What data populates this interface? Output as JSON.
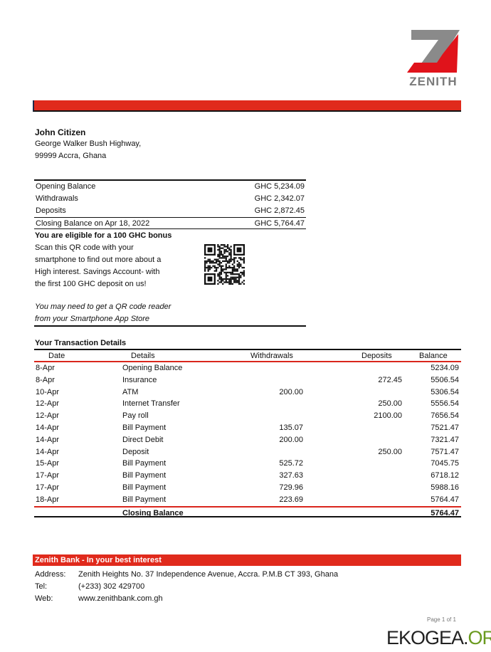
{
  "brand": {
    "name": "ZENITH",
    "red": "#e02a1c",
    "gray": "#8a8a8a"
  },
  "customer": {
    "name": "John Citizen",
    "address1": "George Walker Bush Highway,",
    "address2": "99999 Accra, Ghana"
  },
  "summary": [
    {
      "label": "Opening Balance",
      "value": "GHC 5,234.09"
    },
    {
      "label": "Withdrawals",
      "value": "GHC 2,342.07"
    },
    {
      "label": "Deposits",
      "value": "GHC 2,872.45"
    },
    {
      "label": "Closing  Balance on Apr 18, 2022",
      "value": "GHC 5,764.47"
    }
  ],
  "promo": {
    "title": "You are eligible for a 100 GHC bonus",
    "lines": [
      "Scan this QR code with your",
      "smartphone to find out more about a",
      "High interest. Savings Account- with",
      "the first 100 GHC deposit on us!"
    ],
    "note": [
      "You may need to get a QR code reader",
      "from your Smartphone App Store"
    ]
  },
  "transactions": {
    "title": "Your Transaction Details",
    "headers": [
      "Date",
      "Details",
      "Withdrawals",
      "Deposits",
      "Balance"
    ],
    "rows": [
      [
        "8-Apr",
        "Opening Balance",
        "",
        "",
        "5234.09"
      ],
      [
        "8-Apr",
        "Insurance",
        "",
        "272.45",
        "5506.54"
      ],
      [
        "10-Apr",
        "ATM",
        "200.00",
        "",
        "5306.54"
      ],
      [
        "12-Apr",
        "Internet Transfer",
        "",
        "250.00",
        "5556.54"
      ],
      [
        "12-Apr",
        "Pay roll",
        "",
        "2100.00",
        "7656.54"
      ],
      [
        "14-Apr",
        "Bill Payment",
        "135.07",
        "",
        "7521.47"
      ],
      [
        "14-Apr",
        "Direct Debit",
        "200.00",
        "",
        "7321.47"
      ],
      [
        "14-Apr",
        "Deposit",
        "",
        "250.00",
        "7571.47"
      ],
      [
        "15-Apr",
        "Bill Payment",
        "525.72",
        "",
        "7045.75"
      ],
      [
        "17-Apr",
        "Bill Payment",
        "327.63",
        "",
        "6718.12"
      ],
      [
        "17-Apr",
        "Bill Payment",
        "729.96",
        "",
        "5988.16"
      ],
      [
        "18-Apr",
        "Bill Payment",
        "223.69",
        "",
        "5764.47"
      ]
    ],
    "closing": {
      "label": "Closing Balance",
      "value": "5764.47"
    }
  },
  "footer": {
    "tagline": "Zenith Bank - In your best interest",
    "rows": [
      {
        "label": "Address:",
        "value": "Zenith Heights No. 37 Independence Avenue, Accra. P.M.B CT 393, Ghana"
      },
      {
        "label": "Tel:",
        "value": "(+233) 302 429700"
      },
      {
        "label": "Web:",
        "value": "www.zenithbank.com.gh"
      }
    ],
    "page": "Page 1 of 1"
  },
  "watermark": {
    "main": "EKOGEA.",
    "accent": "ORG"
  }
}
